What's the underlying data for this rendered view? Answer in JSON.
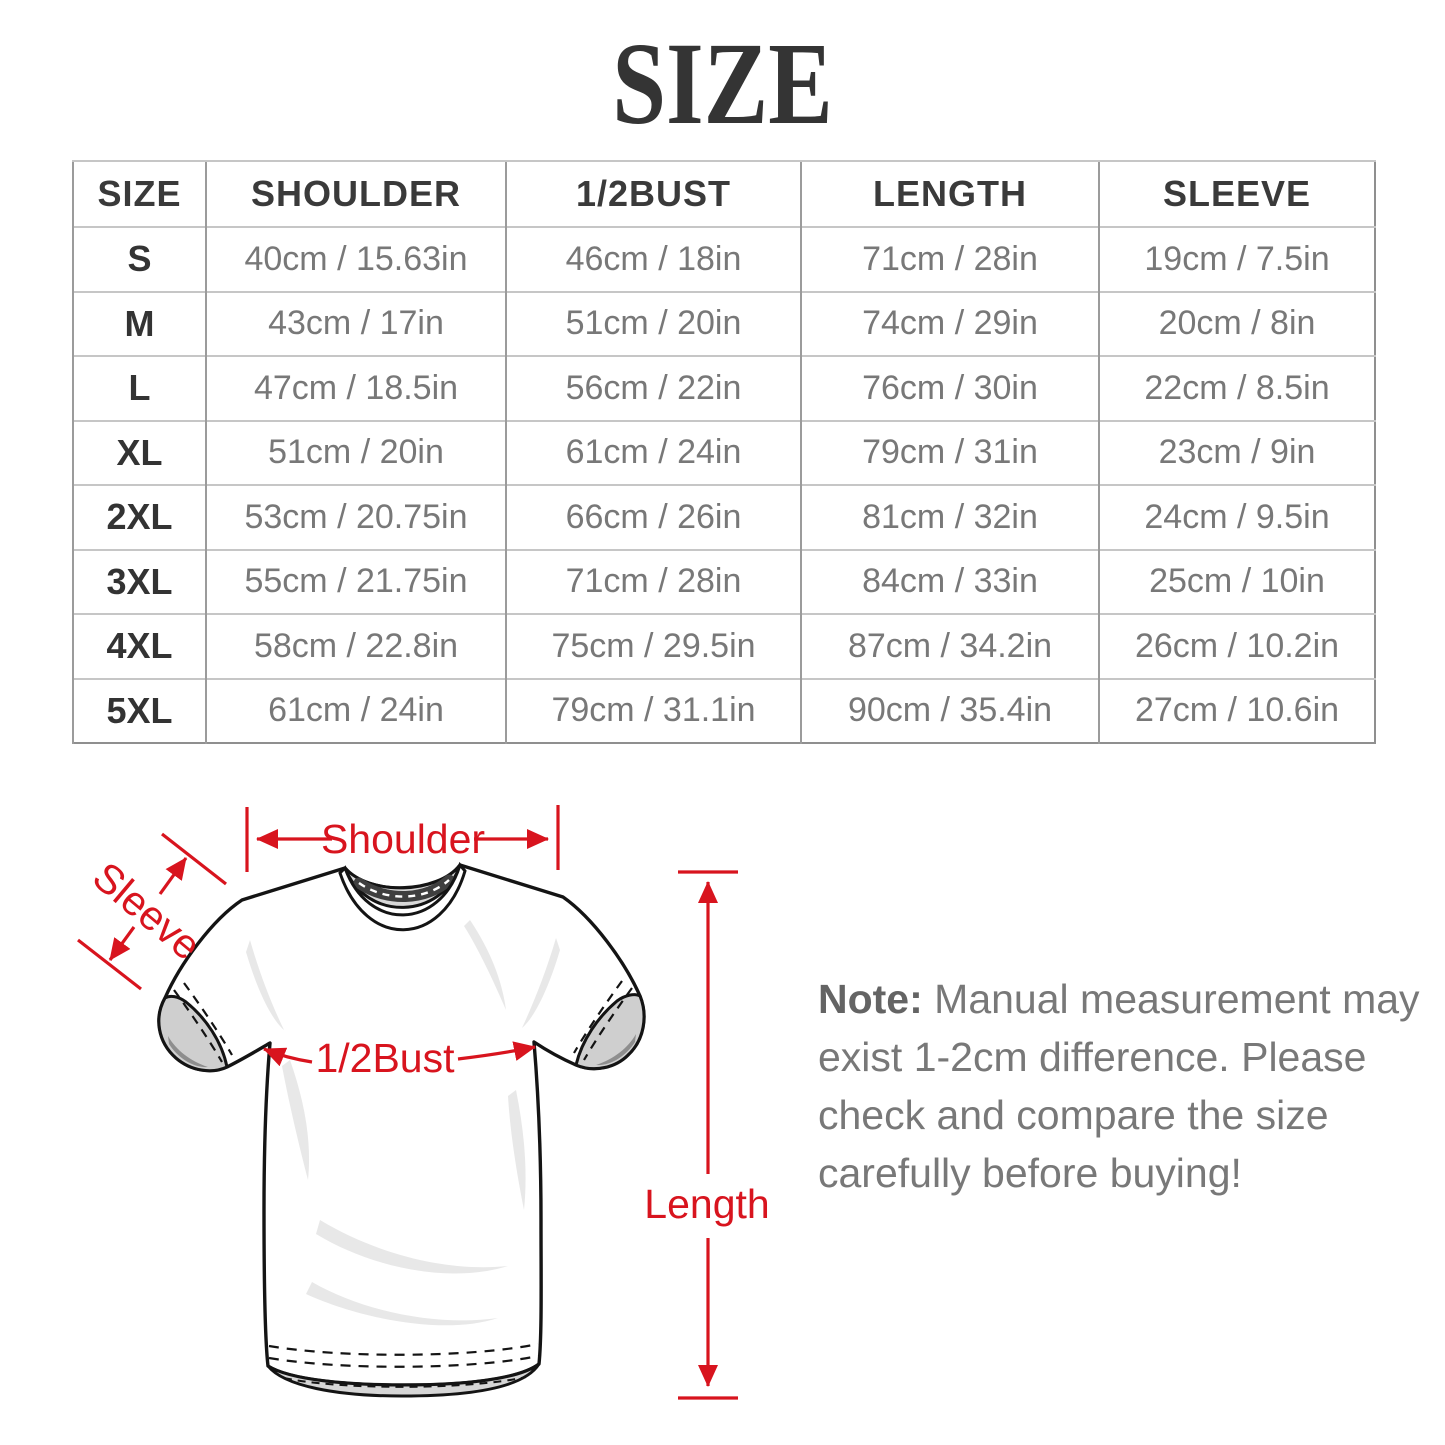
{
  "title": "SIZE",
  "table": {
    "headers": [
      "SIZE",
      "SHOULDER",
      "1/2BUST",
      "LENGTH",
      "SLEEVE"
    ],
    "rows": [
      {
        "size": "S",
        "shoulder": "40cm / 15.63in",
        "bust": "46cm / 18in",
        "length": "71cm / 28in",
        "sleeve": "19cm / 7.5in"
      },
      {
        "size": "M",
        "shoulder": "43cm / 17in",
        "bust": "51cm / 20in",
        "length": "74cm / 29in",
        "sleeve": "20cm / 8in"
      },
      {
        "size": "L",
        "shoulder": "47cm / 18.5in",
        "bust": "56cm / 22in",
        "length": "76cm / 30in",
        "sleeve": "22cm / 8.5in"
      },
      {
        "size": "XL",
        "shoulder": "51cm / 20in",
        "bust": "61cm / 24in",
        "length": "79cm / 31in",
        "sleeve": "23cm / 9in"
      },
      {
        "size": "2XL",
        "shoulder": "53cm / 20.75in",
        "bust": "66cm / 26in",
        "length": "81cm / 32in",
        "sleeve": "24cm / 9.5in"
      },
      {
        "size": "3XL",
        "shoulder": "55cm / 21.75in",
        "bust": "71cm / 28in",
        "length": "84cm / 33in",
        "sleeve": "25cm / 10in"
      },
      {
        "size": "4XL",
        "shoulder": "58cm / 22.8in",
        "bust": "75cm / 29.5in",
        "length": "87cm / 34.2in",
        "sleeve": "26cm / 10.2in"
      },
      {
        "size": "5XL",
        "shoulder": "61cm / 24in",
        "bust": "79cm / 31.1in",
        "length": "90cm / 35.4in",
        "sleeve": "27cm / 10.6in"
      }
    ]
  },
  "diagram": {
    "labels": {
      "shoulder": "Shoulder",
      "sleeve": "Sleeve",
      "bust": "1/2Bust",
      "length": "Length"
    },
    "annotation_color": "#d8141e"
  },
  "note": {
    "label": "Note:",
    "lines": [
      "Manual measurement may",
      "exist 1-2cm difference. Please",
      "check and compare the size",
      "carefully before buying!"
    ]
  }
}
